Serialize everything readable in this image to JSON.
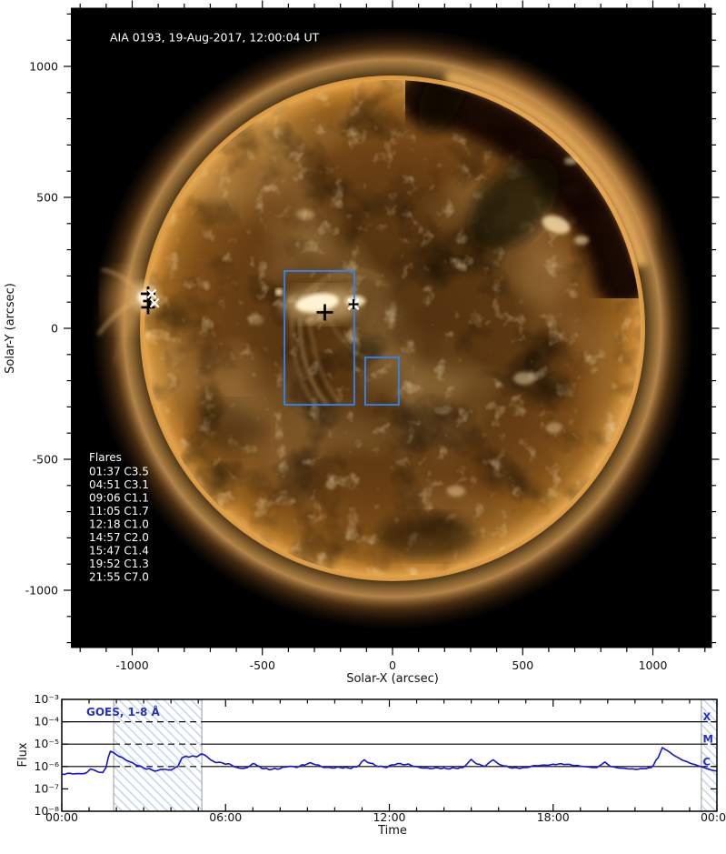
{
  "figure": {
    "background": "#ffffff"
  },
  "solar_map": {
    "title": "AIA 0193, 19-Aug-2017, 12:00:04 UT",
    "xlabel": "Solar-X (arcsec)",
    "ylabel": "Solar-Y (arcsec)",
    "x_tick_labels": [
      "-1000",
      "-500",
      "0",
      "500",
      "1000"
    ],
    "y_tick_labels": [
      "1000",
      "500",
      "0",
      "-500",
      "-1000"
    ],
    "flare_list_heading": "Flares",
    "flare_list": [
      "01:37 C3.5",
      "04:51 C3.1",
      "09:06 C1.1",
      "11:05 C1.7",
      "12:18 C1.0",
      "14:57 C2.0",
      "15:47 C1.4",
      "19:52 C1.3",
      "21:55 C7.0"
    ],
    "region_box_color": "#2e86f5",
    "region_boxes_arcsec": [
      {
        "x_min": -415,
        "x_max": -147,
        "y_min": -292,
        "y_max": 219
      },
      {
        "x_min": -105,
        "x_max": 24,
        "y_min": -292,
        "y_max": -111
      }
    ],
    "flare_markers_arcsec": [
      {
        "shape": "plus",
        "color": "#000000",
        "x": -939,
        "y": 132,
        "size": 16
      },
      {
        "shape": "plus",
        "color": "#000000",
        "x": -932,
        "y": 104,
        "size": 15
      },
      {
        "shape": "plus",
        "color": "#000000",
        "x": -939,
        "y": 80,
        "size": 15
      },
      {
        "shape": "cross",
        "color": "#ffffff",
        "x": -925,
        "y": 132,
        "size": 13
      },
      {
        "shape": "cross",
        "color": "#ffffff",
        "x": -914,
        "y": 97,
        "size": 13
      },
      {
        "shape": "plus",
        "color": "#000000",
        "x": -260,
        "y": 61,
        "size": 18
      },
      {
        "shape": "cross",
        "color": "#ffffff",
        "x": -150,
        "y": 92,
        "size": 16
      },
      {
        "shape": "plus",
        "color": "#000000",
        "x": -150,
        "y": 92,
        "size": 11
      }
    ]
  },
  "goes_plot": {
    "series_label": "GOES, 1-8 Å",
    "ylabel": "Flux",
    "xlabel": "Time",
    "y_tick_labels": [
      "10⁻³",
      "10⁻⁴",
      "10⁻⁵",
      "10⁻⁶",
      "10⁻⁷",
      "10⁻⁸"
    ],
    "y_tick_exponents": [
      -3,
      -4,
      -5,
      -6,
      -7,
      -8
    ],
    "x_tick_labels": [
      "00:00",
      "06:00",
      "12:00",
      "18:00",
      "00:00"
    ],
    "x_tick_hours": [
      0,
      6,
      12,
      18,
      24
    ],
    "flare_class_labels": [
      "X",
      "M",
      "C"
    ],
    "grid_line_exponents": [
      -4,
      -5,
      -6
    ],
    "event_bands_hours": [
      [
        1.9,
        5.13
      ],
      [
        23.43,
        24
      ]
    ],
    "curve_color": "#1414d8",
    "label_color": "#2430c8",
    "hatch_color": "#bdd3ea",
    "band_edge_color": "#9a9a9a"
  },
  "chart_data": {
    "type": "line",
    "title": "GOES, 1-8 Å",
    "xlabel": "Time",
    "ylabel": "Flux",
    "x_units": "hours UT on 19-Aug-2017",
    "xlim": [
      0,
      24
    ],
    "yscale": "log",
    "ylim": [
      1e-08,
      0.001
    ],
    "grid": "horizontal lines at 1e-4, 1e-5, 1e-6",
    "legend_position": "top-left inside",
    "series": [
      {
        "name": "GOES 1-8 Å X-ray flux",
        "x": [
          0,
          0.3,
          0.6,
          0.9,
          1.05,
          1.2,
          1.35,
          1.5,
          1.62,
          1.7,
          1.78,
          1.9,
          2.1,
          2.4,
          2.7,
          3.0,
          3.3,
          3.5,
          3.7,
          3.9,
          4.1,
          4.25,
          4.4,
          4.55,
          4.65,
          4.8,
          4.95,
          5.1,
          5.25,
          5.45,
          5.65,
          5.8,
          6.0,
          6.15,
          6.3,
          6.5,
          6.8,
          7.0,
          7.15,
          7.4,
          7.7,
          8.0,
          8.3,
          8.6,
          9.1,
          9.3,
          9.6,
          9.9,
          10.2,
          10.5,
          10.8,
          11.08,
          11.3,
          11.6,
          11.9,
          12.1,
          12.3,
          12.5,
          12.7,
          12.9,
          13.2,
          13.5,
          13.8,
          14.1,
          14.4,
          14.7,
          15.0,
          15.2,
          15.5,
          15.8,
          16.0,
          16.4,
          16.7,
          17.0,
          17.3,
          17.6,
          17.9,
          18.2,
          18.5,
          18.8,
          19.1,
          19.4,
          19.6,
          19.9,
          20.1,
          20.4,
          20.7,
          21.0,
          21.3,
          21.6,
          21.85,
          22.0,
          22.2,
          22.5,
          22.8,
          23.1,
          23.4,
          23.7,
          23.9,
          24.0
        ],
        "y": [
          4.6e-07,
          5e-07,
          4.8e-07,
          5.2e-07,
          7.8e-07,
          6.8e-07,
          5.6e-07,
          5.4e-07,
          9e-07,
          2.5e-06,
          4.8e-06,
          4.2e-06,
          2.8e-06,
          1.8e-06,
          1.2e-06,
          8.5e-07,
          7e-07,
          6.5e-07,
          7.5e-07,
          7e-07,
          8e-07,
          1e-06,
          2.4e-06,
          2.9e-06,
          2.6e-06,
          3e-06,
          2.7e-06,
          3.6e-06,
          3.2e-06,
          2e-06,
          1.5e-06,
          1.55e-06,
          1.25e-06,
          1.3e-06,
          1e-06,
          8.5e-07,
          9e-07,
          1.35e-06,
          1.1e-06,
          8e-07,
          7.5e-07,
          8e-07,
          1e-06,
          9e-07,
          1.5e-06,
          1.2e-06,
          9e-07,
          8.5e-07,
          9e-07,
          8.5e-07,
          9.5e-07,
          2e-06,
          1.4e-06,
          1e-06,
          9e-07,
          1.2e-06,
          1.35e-06,
          1.2e-06,
          1.3e-06,
          1e-06,
          8.5e-07,
          8e-07,
          8.5e-07,
          8e-07,
          8.5e-07,
          9e-07,
          2.1e-06,
          1.3e-06,
          1e-06,
          2e-06,
          1.3e-06,
          9e-07,
          8.5e-07,
          9e-07,
          1.1e-06,
          1.15e-06,
          1.2e-06,
          1.3e-06,
          1.25e-06,
          1.1e-06,
          1e-06,
          9e-07,
          9e-07,
          1.6e-06,
          1e-06,
          8.5e-07,
          8e-07,
          7.5e-07,
          8e-07,
          9e-07,
          2.5e-06,
          7e-06,
          5e-06,
          2.8e-06,
          1.8e-06,
          1.3e-06,
          1e-06,
          7.5e-07,
          6.5e-07,
          6.3e-07
        ]
      }
    ],
    "flare_annotations": [
      {
        "time": "01:37",
        "class": "C3.5"
      },
      {
        "time": "04:51",
        "class": "C3.1"
      },
      {
        "time": "09:06",
        "class": "C1.1"
      },
      {
        "time": "11:05",
        "class": "C1.7"
      },
      {
        "time": "12:18",
        "class": "C1.0"
      },
      {
        "time": "14:57",
        "class": "C2.0"
      },
      {
        "time": "15:47",
        "class": "C1.4"
      },
      {
        "time": "19:52",
        "class": "C1.3"
      },
      {
        "time": "21:55",
        "class": "C7.0"
      }
    ]
  }
}
